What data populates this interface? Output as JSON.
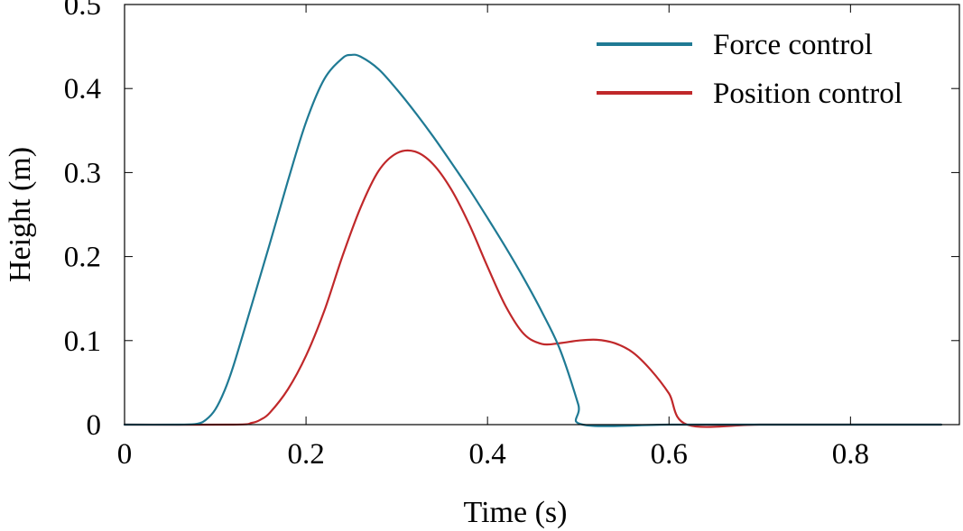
{
  "chart_data": {
    "type": "line",
    "xlabel": "Time (s)",
    "ylabel": "Height (m)",
    "xlim": [
      0,
      0.92
    ],
    "ylim": [
      0,
      0.5
    ],
    "x_ticks": [
      0,
      0.2,
      0.4,
      0.6,
      0.8
    ],
    "x_tick_labels": [
      "0",
      "0.2",
      "0.4",
      "0.6",
      "0.8"
    ],
    "y_ticks": [
      0,
      0.1,
      0.2,
      0.3,
      0.4,
      0.5
    ],
    "y_tick_labels": [
      "0",
      "0.1",
      "0.2",
      "0.3",
      "0.4",
      "0.5"
    ],
    "grid": false,
    "legend_position": "top-right",
    "series": [
      {
        "name": "Force control",
        "color": "#1f7a94",
        "x": [
          0,
          0.06,
          0.08,
          0.09,
          0.1,
          0.11,
          0.12,
          0.14,
          0.16,
          0.18,
          0.2,
          0.22,
          0.24,
          0.25,
          0.26,
          0.28,
          0.3,
          0.32,
          0.34,
          0.36,
          0.38,
          0.4,
          0.42,
          0.44,
          0.46,
          0.48,
          0.5,
          0.505,
          0.6,
          0.7,
          0.8,
          0.9
        ],
        "y": [
          0,
          0,
          0.001,
          0.006,
          0.018,
          0.04,
          0.07,
          0.142,
          0.215,
          0.29,
          0.36,
          0.411,
          0.436,
          0.44,
          0.438,
          0.423,
          0.399,
          0.372,
          0.343,
          0.312,
          0.28,
          0.246,
          0.211,
          0.174,
          0.134,
          0.089,
          0.024,
          0,
          0,
          0,
          0,
          0
        ]
      },
      {
        "name": "Position control",
        "color": "#c0282a",
        "x": [
          0,
          0.12,
          0.14,
          0.15,
          0.16,
          0.18,
          0.2,
          0.22,
          0.24,
          0.26,
          0.28,
          0.3,
          0.32,
          0.34,
          0.36,
          0.38,
          0.4,
          0.42,
          0.44,
          0.46,
          0.48,
          0.5,
          0.52,
          0.54,
          0.56,
          0.58,
          0.6,
          0.62,
          0.7,
          0.8,
          0.9
        ],
        "y": [
          0,
          0,
          0.002,
          0.006,
          0.014,
          0.042,
          0.082,
          0.135,
          0.2,
          0.258,
          0.302,
          0.323,
          0.325,
          0.31,
          0.28,
          0.238,
          0.188,
          0.141,
          0.108,
          0.096,
          0.097,
          0.1,
          0.101,
          0.097,
          0.086,
          0.065,
          0.037,
          0,
          0,
          0,
          0
        ]
      }
    ]
  }
}
